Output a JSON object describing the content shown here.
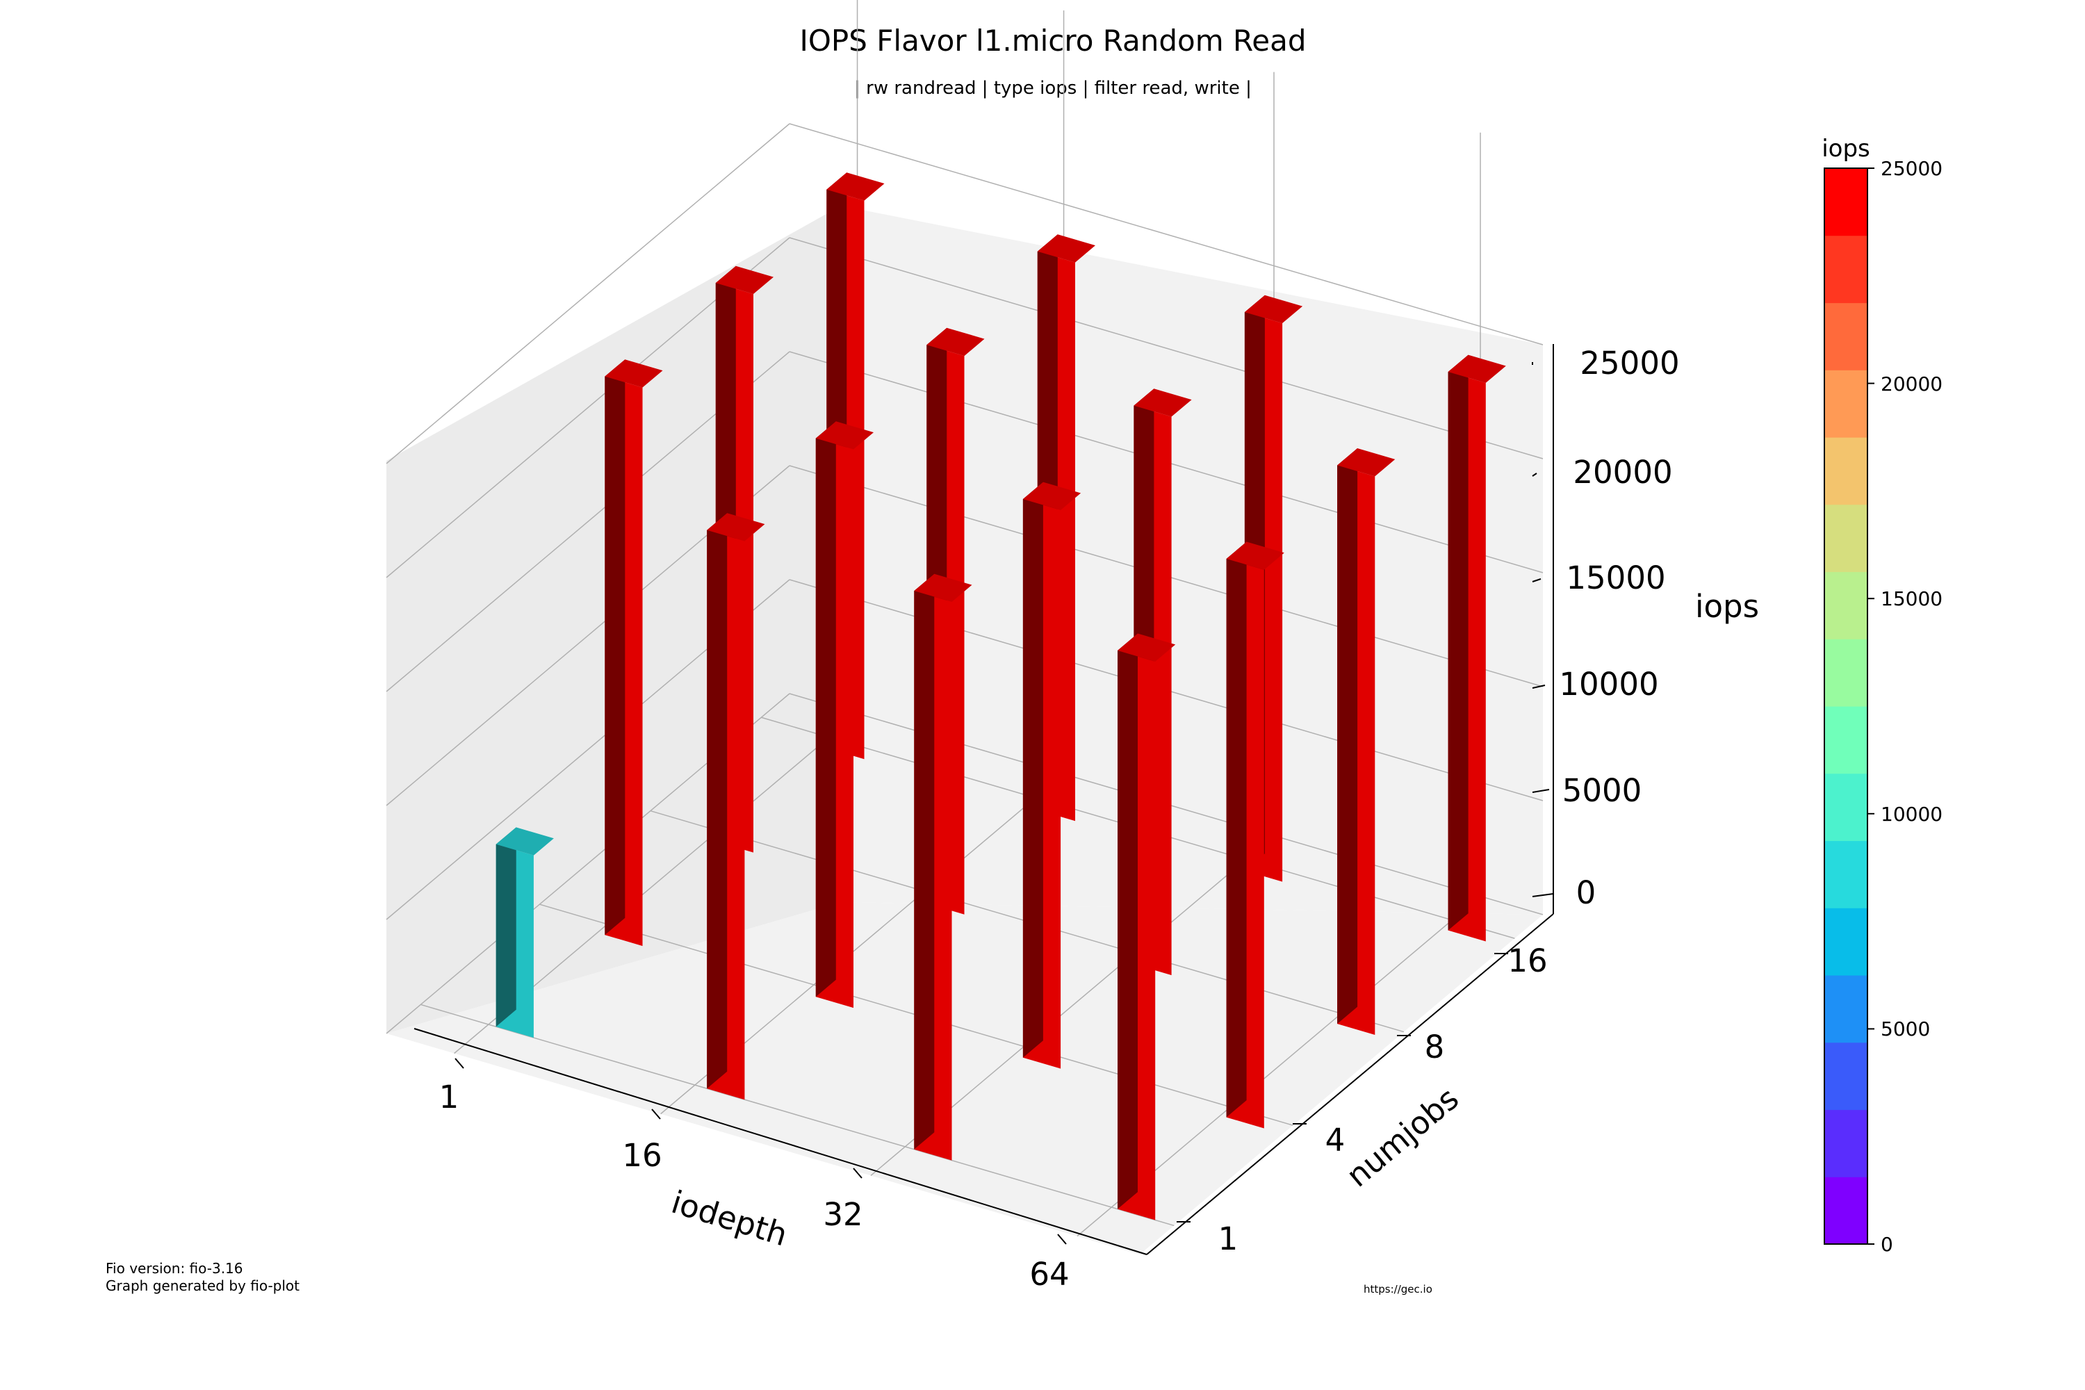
{
  "title": "IOPS Flavor l1.micro Random Read",
  "subtitle": "| rw randread | type iops | filter read, write |",
  "footer": {
    "fio_version": "Fio version: fio-3.16",
    "generated_by": "Graph generated by fio-plot",
    "url": "https://gec.io"
  },
  "chart_data": {
    "type": "bar3d",
    "title": "IOPS Flavor l1.micro Random Read",
    "subtitle": "| rw randread | type iops | filter read, write |",
    "x_label": "iodepth",
    "y_label": "numjobs",
    "z_label": "iops",
    "x_ticks": [
      "1",
      "16",
      "32",
      "64"
    ],
    "y_ticks": [
      "1",
      "4",
      "8",
      "16"
    ],
    "z_ticks": [
      "0",
      "5000",
      "10000",
      "15000",
      "20000",
      "25000"
    ],
    "z_range": [
      0,
      25000
    ],
    "grid": true,
    "bars": [
      {
        "iodepth": "1",
        "numjobs": "1",
        "iops": 8000
      },
      {
        "iodepth": "1",
        "numjobs": "4",
        "iops": 24500
      },
      {
        "iodepth": "1",
        "numjobs": "8",
        "iops": 24500
      },
      {
        "iodepth": "1",
        "numjobs": "16",
        "iops": 24500
      },
      {
        "iodepth": "16",
        "numjobs": "1",
        "iops": 24500
      },
      {
        "iodepth": "16",
        "numjobs": "4",
        "iops": 24500
      },
      {
        "iodepth": "16",
        "numjobs": "8",
        "iops": 24500
      },
      {
        "iodepth": "16",
        "numjobs": "16",
        "iops": 24500
      },
      {
        "iodepth": "32",
        "numjobs": "1",
        "iops": 24500
      },
      {
        "iodepth": "32",
        "numjobs": "4",
        "iops": 24500
      },
      {
        "iodepth": "32",
        "numjobs": "8",
        "iops": 24500
      },
      {
        "iodepth": "32",
        "numjobs": "16",
        "iops": 24500
      },
      {
        "iodepth": "64",
        "numjobs": "1",
        "iops": 24500
      },
      {
        "iodepth": "64",
        "numjobs": "4",
        "iops": 24500
      },
      {
        "iodepth": "64",
        "numjobs": "8",
        "iops": 24500
      },
      {
        "iodepth": "64",
        "numjobs": "16",
        "iops": 24500
      }
    ],
    "colorbar": {
      "title": "iops",
      "ticks": [
        "0",
        "5000",
        "10000",
        "15000",
        "20000",
        "25000"
      ],
      "range": [
        0,
        25000
      ],
      "colors": [
        "#7f00ff",
        "#5a2dfd",
        "#3a5bfa",
        "#1e90f6",
        "#08bde9",
        "#27dadd",
        "#4cf2cd",
        "#70ffba",
        "#98fb9f",
        "#b9f08e",
        "#d6de7e",
        "#f3c46d",
        "#ff9a55",
        "#ff6a3b",
        "#ff3720",
        "#ff0000"
      ]
    }
  }
}
